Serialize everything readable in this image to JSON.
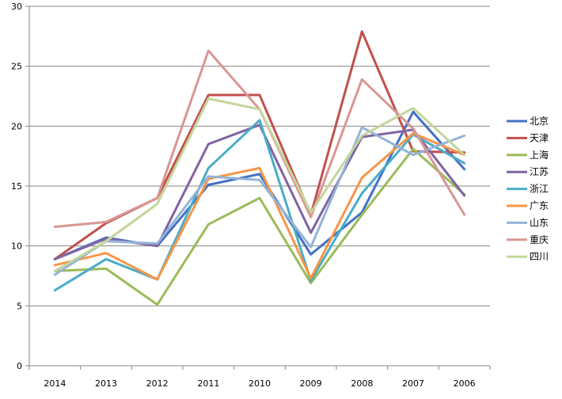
{
  "chart_data": {
    "type": "line",
    "title": "",
    "xlabel": "",
    "ylabel": "",
    "categories": [
      "2014",
      "2013",
      "2012",
      "2011",
      "2010",
      "2009",
      "2008",
      "2007",
      "2006"
    ],
    "ylim": [
      0,
      30
    ],
    "yticks": [
      0,
      5,
      10,
      15,
      20,
      25,
      30
    ],
    "grid": true,
    "legend_position": "right",
    "series": [
      {
        "name": "北京",
        "color": "#4472C4",
        "values": [
          8.9,
          10.7,
          10.0,
          15.1,
          16.0,
          9.3,
          12.8,
          21.2,
          16.4
        ]
      },
      {
        "name": "天津",
        "color": "#C0504D",
        "values": [
          8.9,
          11.9,
          14.0,
          22.6,
          22.6,
          12.6,
          27.9,
          17.9,
          17.8
        ]
      },
      {
        "name": "上海",
        "color": "#9BBB59",
        "values": [
          7.9,
          8.1,
          5.1,
          11.8,
          14.0,
          6.9,
          12.6,
          18.1,
          14.3
        ]
      },
      {
        "name": "江苏",
        "color": "#8064A2",
        "values": [
          8.9,
          10.6,
          10.0,
          18.5,
          20.1,
          11.1,
          19.1,
          19.7,
          14.2
        ]
      },
      {
        "name": "浙江",
        "color": "#4BACC6",
        "values": [
          6.3,
          8.9,
          7.2,
          16.5,
          20.5,
          7.1,
          14.4,
          19.3,
          16.9
        ]
      },
      {
        "name": "广东",
        "color": "#F79646",
        "values": [
          8.4,
          9.4,
          7.2,
          15.6,
          16.5,
          7.3,
          15.7,
          19.4,
          17.6
        ]
      },
      {
        "name": "山东",
        "color": "#95B3D7",
        "values": [
          7.6,
          10.4,
          10.2,
          15.8,
          15.5,
          9.9,
          19.9,
          17.6,
          19.2
        ]
      },
      {
        "name": "重庆",
        "color": "#D99694",
        "values": [
          11.6,
          12.0,
          14.0,
          26.3,
          21.4,
          12.4,
          23.9,
          19.8,
          12.6
        ]
      },
      {
        "name": "四川",
        "color": "#C3D69B",
        "values": [
          7.9,
          10.4,
          13.5,
          22.3,
          21.4,
          12.8,
          19.2,
          21.5,
          17.6
        ]
      }
    ]
  }
}
